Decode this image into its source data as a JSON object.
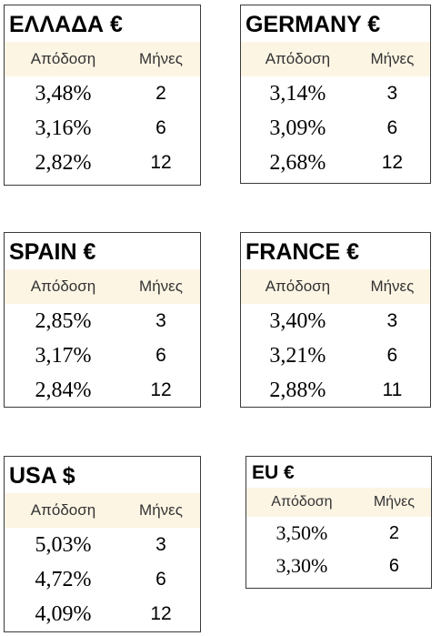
{
  "cards": [
    {
      "title": "ΕΛΛΑΔΑ €",
      "yield_label": "Απόδοση",
      "months_label": "Μήνες",
      "rows": [
        {
          "yield": "3,48%",
          "months": "2"
        },
        {
          "yield": "3,16%",
          "months": "6"
        },
        {
          "yield": "2,82%",
          "months": "12"
        }
      ]
    },
    {
      "title": "GERMANY €",
      "yield_label": "Απόδοση",
      "months_label": "Μήνες",
      "rows": [
        {
          "yield": "3,14%",
          "months": "3"
        },
        {
          "yield": "3,09%",
          "months": "6"
        },
        {
          "yield": "2,68%",
          "months": "12"
        }
      ]
    },
    {
      "title": "SPAIN €",
      "yield_label": "Απόδοση",
      "months_label": "Μήνες",
      "rows": [
        {
          "yield": "2,85%",
          "months": "3"
        },
        {
          "yield": "3,17%",
          "months": "6"
        },
        {
          "yield": "2,84%",
          "months": "12"
        }
      ]
    },
    {
      "title": "FRANCE €",
      "yield_label": "Απόδοση",
      "months_label": "Μήνες",
      "rows": [
        {
          "yield": "3,40%",
          "months": "3"
        },
        {
          "yield": "3,21%",
          "months": "6"
        },
        {
          "yield": "2,88%",
          "months": "11"
        }
      ]
    },
    {
      "title": "USA $",
      "yield_label": "Απόδοση",
      "months_label": "Μήνες",
      "rows": [
        {
          "yield": "5,03%",
          "months": "3"
        },
        {
          "yield": "4,72%",
          "months": "6"
        },
        {
          "yield": "4,09%",
          "months": "12"
        }
      ]
    },
    {
      "title": "EU €",
      "yield_label": "Απόδοση",
      "months_label": "Μήνες",
      "rows": [
        {
          "yield": "3,50%",
          "months": "2"
        },
        {
          "yield": "3,30%",
          "months": "6"
        }
      ]
    }
  ],
  "colors": {
    "header_background": "#fdf5e4",
    "border": "#3a3a3a",
    "text": "#000000"
  }
}
